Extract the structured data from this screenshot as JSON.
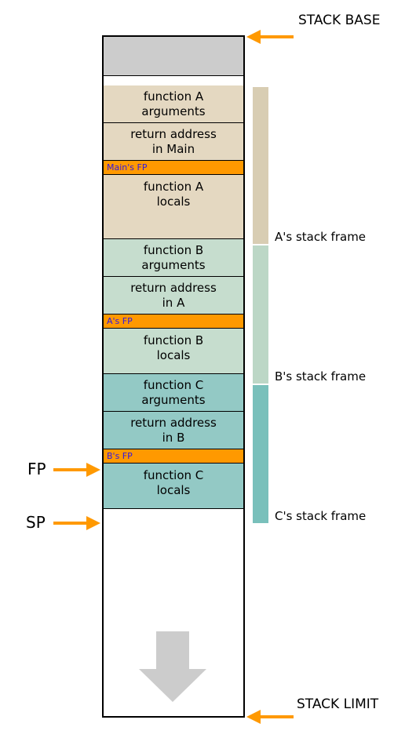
{
  "colors": {
    "gray": "#cccccc",
    "frameA": "#e4d8c1",
    "frameB": "#c6ddce",
    "frameC": "#93c9c5",
    "fpBar": "#ff9900",
    "fpText": "#3118e3",
    "arrow": "#ff9900",
    "bracketA": "#d8cdb3",
    "bracketB": "#bcd7c6",
    "bracketC": "#79c0bb"
  },
  "heights": {
    "gray": 50,
    "gap": 12,
    "args": 48,
    "ret": 48,
    "fp": 18,
    "localsA": 82,
    "localsB": 58,
    "localsC": 58
  },
  "labels": {
    "stackBase": "STACK BASE",
    "stackLimit": "STACK LIMIT",
    "fp": "FP",
    "sp": "SP",
    "frameA": "A's stack frame",
    "frameB": "B's stack frame",
    "frameC": "C's stack frame"
  },
  "frameA": {
    "args": "function A\narguments",
    "ret": "return address\nin Main",
    "fp": "Main's FP",
    "locals": "function A\nlocals"
  },
  "frameB": {
    "args": "function B\narguments",
    "ret": "return address\nin A",
    "fp": "A's FP",
    "locals": "function B\nlocals"
  },
  "frameC": {
    "args": "function C\narguments",
    "ret": "return address\nin B",
    "fp": "B's FP",
    "locals": "function C\nlocals"
  }
}
